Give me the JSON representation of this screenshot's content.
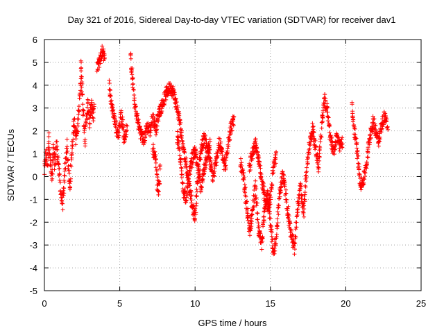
{
  "chart_data": {
    "type": "scatter",
    "title": "Day 321 of 2016, Sidereal Day-to-day VTEC variation (SDTVAR) for receiver dav1",
    "xlabel": "GPS time / hours",
    "ylabel": "SDTVAR / TECUs",
    "xlim": [
      0,
      25
    ],
    "ylim": [
      -5,
      6
    ],
    "xticks": [
      0,
      5,
      10,
      15,
      20,
      25
    ],
    "yticks": [
      -5,
      -4,
      -3,
      -2,
      -1,
      0,
      1,
      2,
      3,
      4,
      5,
      6
    ],
    "xtick_labels": [
      "0",
      "5",
      "10",
      "15",
      "20",
      "25"
    ],
    "ytick_labels": [
      "-5",
      "-4",
      "-3",
      "-2",
      "-1",
      "0",
      "1",
      "2",
      "3",
      "4",
      "5",
      "6"
    ],
    "grid": true,
    "marker": "+",
    "color": "#ff0000",
    "series": [
      {
        "name": "SDTVAR",
        "segments": [
          [
            [
              0.0,
              0.2
            ],
            [
              0.1,
              1.0
            ],
            [
              0.2,
              0.5
            ],
            [
              0.3,
              1.8
            ],
            [
              0.4,
              0.6
            ],
            [
              0.5,
              -0.2
            ],
            [
              0.6,
              1.2
            ],
            [
              0.7,
              0.4
            ],
            [
              0.8,
              1.5
            ],
            [
              0.9,
              0.8
            ],
            [
              1.0,
              0.0
            ],
            [
              1.1,
              -0.8
            ],
            [
              1.2,
              -1.2
            ],
            [
              1.3,
              -0.5
            ],
            [
              1.4,
              0.6
            ],
            [
              1.5,
              1.4
            ],
            [
              1.6,
              0.3
            ],
            [
              1.7,
              -0.6
            ],
            [
              1.8,
              0.9
            ],
            [
              1.9,
              1.9
            ],
            [
              2.0,
              2.5
            ],
            [
              2.1,
              1.6
            ],
            [
              2.2,
              2.2
            ],
            [
              2.3,
              3.0
            ],
            [
              2.4,
              4.0
            ],
            [
              2.45,
              5.0
            ],
            [
              2.5,
              3.6
            ],
            [
              2.6,
              2.6
            ],
            [
              2.7,
              1.6
            ],
            [
              2.8,
              2.6
            ],
            [
              2.9,
              3.2
            ],
            [
              3.0,
              2.3
            ],
            [
              3.1,
              3.3
            ],
            [
              3.2,
              2.6
            ],
            [
              3.3,
              3.1
            ]
          ],
          [
            [
              3.5,
              4.7
            ],
            [
              3.7,
              5.2
            ],
            [
              3.9,
              5.6
            ],
            [
              4.0,
              5.0
            ]
          ],
          [
            [
              4.3,
              4.0
            ],
            [
              4.5,
              3.0
            ],
            [
              4.7,
              2.4
            ],
            [
              4.9,
              1.8
            ],
            [
              5.1,
              2.8
            ],
            [
              5.3,
              1.6
            ],
            [
              5.5,
              2.2
            ]
          ],
          [
            [
              5.7,
              5.2
            ],
            [
              5.8,
              4.6
            ],
            [
              5.9,
              3.8
            ],
            [
              6.0,
              3.1
            ],
            [
              6.2,
              2.4
            ],
            [
              6.4,
              1.9
            ],
            [
              6.6,
              1.6
            ],
            [
              6.8,
              2.2
            ],
            [
              7.0,
              2.0
            ],
            [
              7.2,
              2.6
            ],
            [
              7.4,
              2.1
            ],
            [
              7.6,
              2.8
            ],
            [
              7.8,
              3.1
            ],
            [
              8.0,
              3.5
            ],
            [
              8.2,
              3.8
            ],
            [
              8.4,
              3.9
            ],
            [
              8.6,
              3.6
            ],
            [
              8.8,
              3.0
            ],
            [
              9.0,
              2.3
            ],
            [
              9.2,
              1.4
            ],
            [
              9.4,
              0.5
            ],
            [
              9.6,
              -0.3
            ],
            [
              9.8,
              -1.3
            ],
            [
              10.0,
              -1.8
            ],
            [
              10.2,
              0.2
            ],
            [
              10.4,
              1.2
            ],
            [
              10.6,
              1.7
            ],
            [
              10.8,
              1.3
            ],
            [
              11.0,
              0.6
            ],
            [
              11.2,
              -0.1
            ],
            [
              11.4,
              0.7
            ],
            [
              11.6,
              1.5
            ],
            [
              11.8,
              1.0
            ],
            [
              12.0,
              0.3
            ],
            [
              12.2,
              1.6
            ],
            [
              12.4,
              2.2
            ],
            [
              12.6,
              2.5
            ]
          ],
          [
            [
              7.2,
              1.2
            ],
            [
              7.4,
              0.6
            ],
            [
              7.5,
              -0.4
            ],
            [
              7.6,
              -0.6
            ],
            [
              7.7,
              0.8
            ]
          ],
          [
            [
              8.8,
              1.8
            ],
            [
              9.0,
              0.9
            ],
            [
              9.2,
              -0.6
            ],
            [
              9.4,
              -0.9
            ],
            [
              9.6,
              0.1
            ],
            [
              9.8,
              0.8
            ],
            [
              10.0,
              1.1
            ],
            [
              10.2,
              0.3
            ],
            [
              10.4,
              -0.5
            ],
            [
              10.6,
              0.4
            ],
            [
              10.8,
              1.0
            ],
            [
              11.0,
              1.5
            ]
          ],
          [
            [
              13.0,
              0.6
            ],
            [
              13.2,
              0.0
            ],
            [
              13.4,
              -1.2
            ],
            [
              13.6,
              -2.4
            ],
            [
              13.8,
              -1.6
            ],
            [
              14.0,
              -0.4
            ],
            [
              14.2,
              -2.3
            ],
            [
              14.4,
              -3.0
            ],
            [
              14.6,
              -1.6
            ],
            [
              14.8,
              -0.5
            ],
            [
              15.0,
              -2.0
            ],
            [
              15.2,
              -3.5
            ],
            [
              15.4,
              -2.5
            ],
            [
              15.6,
              -0.8
            ],
            [
              15.8,
              0.1
            ],
            [
              16.0,
              -0.6
            ],
            [
              16.2,
              -1.8
            ],
            [
              16.4,
              -2.6
            ],
            [
              16.6,
              -3.2
            ],
            [
              16.8,
              -1.4
            ],
            [
              17.0,
              -0.5
            ],
            [
              17.2,
              -1.6
            ],
            [
              17.4,
              0.2
            ],
            [
              17.6,
              1.4
            ],
            [
              17.8,
              2.1
            ],
            [
              18.0,
              1.2
            ],
            [
              18.2,
              0.4
            ],
            [
              18.4,
              2.3
            ],
            [
              18.6,
              3.4
            ],
            [
              18.8,
              2.8
            ],
            [
              19.0,
              1.6
            ],
            [
              19.2,
              1.1
            ],
            [
              19.4,
              1.8
            ],
            [
              19.6,
              1.3
            ],
            [
              19.8,
              1.5
            ]
          ],
          [
            [
              13.6,
              0.4
            ],
            [
              13.8,
              1.0
            ],
            [
              14.0,
              1.5
            ],
            [
              14.2,
              0.8
            ],
            [
              14.4,
              0.0
            ],
            [
              14.6,
              -0.8
            ],
            [
              14.8,
              -1.4
            ],
            [
              15.0,
              -0.9
            ],
            [
              15.2,
              0.4
            ],
            [
              15.4,
              1.0
            ]
          ],
          [
            [
              20.4,
              3.0
            ],
            [
              20.6,
              1.9
            ],
            [
              20.8,
              0.8
            ],
            [
              21.0,
              -0.4
            ],
            [
              21.2,
              -0.1
            ],
            [
              21.4,
              0.7
            ],
            [
              21.6,
              1.8
            ],
            [
              21.8,
              2.4
            ],
            [
              22.0,
              2.0
            ],
            [
              22.2,
              1.6
            ],
            [
              22.4,
              2.3
            ],
            [
              22.6,
              2.7
            ],
            [
              22.8,
              2.1
            ]
          ]
        ]
      }
    ]
  }
}
